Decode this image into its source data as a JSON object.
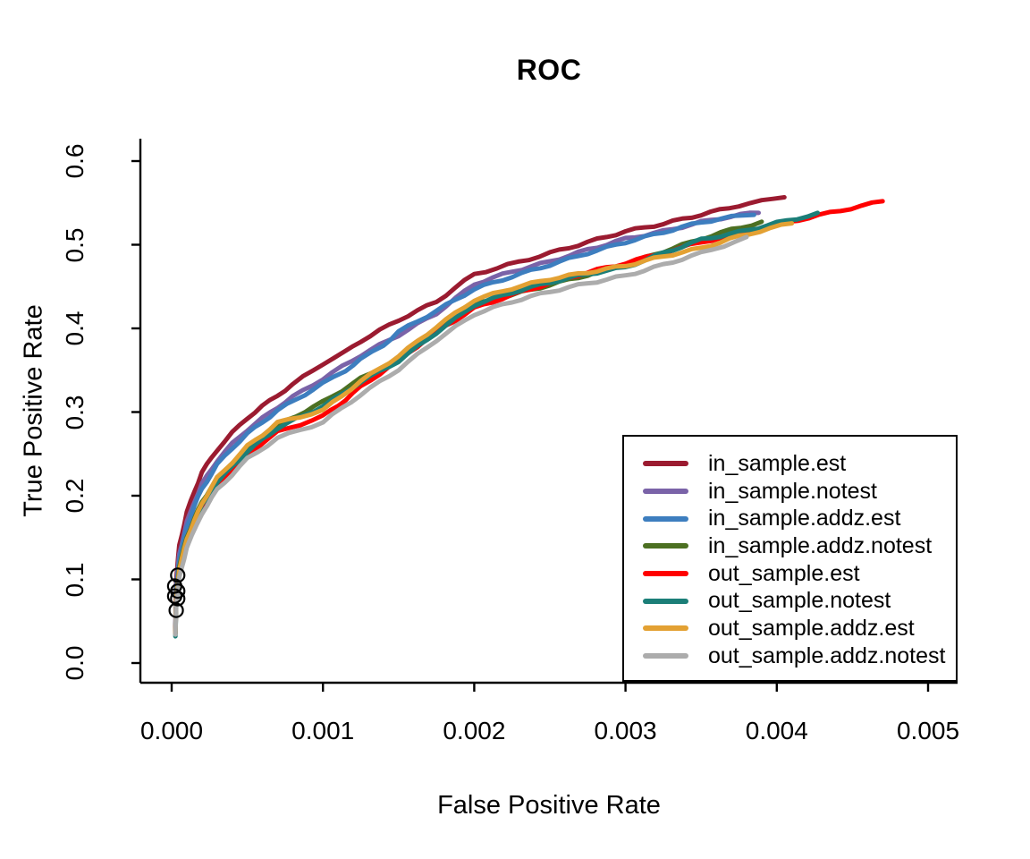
{
  "chart_data": {
    "type": "line",
    "title": "ROC",
    "xlabel": "False Positive Rate",
    "ylabel": "True Positive Rate",
    "x_ticks": [
      0.0,
      0.001,
      0.002,
      0.003,
      0.004,
      0.005
    ],
    "x_tick_labels": [
      "0.000",
      "0.001",
      "0.002",
      "0.003",
      "0.004",
      "0.005"
    ],
    "y_ticks": [
      0.0,
      0.1,
      0.2,
      0.3,
      0.4,
      0.5,
      0.6
    ],
    "y_tick_labels": [
      "0.0",
      "0.1",
      "0.2",
      "0.3",
      "0.4",
      "0.5",
      "0.6"
    ],
    "xlim": [
      -0.0002,
      0.0052
    ],
    "ylim": [
      -0.024,
      0.627
    ],
    "grid": false,
    "axis_color": "#000000",
    "legend": {
      "position": "bottomright",
      "border_color": "#000000",
      "background": "#ffffff"
    },
    "series": [
      {
        "name": "in_sample.est",
        "color": "#9B1B30",
        "line_width": 5,
        "points": [
          [
            2.5e-05,
            0.042
          ],
          [
            3e-05,
            0.1
          ],
          [
            5e-05,
            0.14
          ],
          [
            0.0001,
            0.18
          ],
          [
            0.00015,
            0.205
          ],
          [
            0.0002,
            0.228
          ],
          [
            0.0003,
            0.255
          ],
          [
            0.0004,
            0.275
          ],
          [
            0.0005,
            0.293
          ],
          [
            0.0006,
            0.307
          ],
          [
            0.0007,
            0.32
          ],
          [
            0.0008,
            0.333
          ],
          [
            0.001,
            0.358
          ],
          [
            0.00115,
            0.372
          ],
          [
            0.00125,
            0.385
          ],
          [
            0.0015,
            0.41
          ],
          [
            0.00175,
            0.432
          ],
          [
            0.002,
            0.465
          ],
          [
            0.00215,
            0.472
          ],
          [
            0.0025,
            0.49
          ],
          [
            0.00275,
            0.503
          ],
          [
            0.003,
            0.516
          ],
          [
            0.00325,
            0.525
          ],
          [
            0.0035,
            0.536
          ],
          [
            0.00375,
            0.547
          ],
          [
            0.0039,
            0.552
          ],
          [
            0.00405,
            0.558
          ]
        ]
      },
      {
        "name": "in_sample.notest",
        "color": "#7A63A8",
        "line_width": 5,
        "points": [
          [
            2.5e-05,
            0.04
          ],
          [
            3e-05,
            0.092
          ],
          [
            5e-05,
            0.13
          ],
          [
            0.0001,
            0.168
          ],
          [
            0.00015,
            0.193
          ],
          [
            0.0002,
            0.214
          ],
          [
            0.0003,
            0.242
          ],
          [
            0.0004,
            0.262
          ],
          [
            0.0005,
            0.279
          ],
          [
            0.0007,
            0.306
          ],
          [
            0.0008,
            0.318
          ],
          [
            0.001,
            0.34
          ],
          [
            0.00125,
            0.368
          ],
          [
            0.0015,
            0.392
          ],
          [
            0.00175,
            0.418
          ],
          [
            0.002,
            0.453
          ],
          [
            0.00225,
            0.468
          ],
          [
            0.0025,
            0.48
          ],
          [
            0.00275,
            0.494
          ],
          [
            0.003,
            0.507
          ],
          [
            0.00325,
            0.516
          ],
          [
            0.0035,
            0.527
          ],
          [
            0.0037,
            0.534
          ],
          [
            0.00388,
            0.539
          ]
        ]
      },
      {
        "name": "in_sample.addz.est",
        "color": "#3D7EBF",
        "line_width": 5,
        "points": [
          [
            2.5e-05,
            0.039
          ],
          [
            3e-05,
            0.086
          ],
          [
            5e-05,
            0.124
          ],
          [
            0.0001,
            0.163
          ],
          [
            0.00015,
            0.188
          ],
          [
            0.0002,
            0.208
          ],
          [
            0.0003,
            0.237
          ],
          [
            0.0004,
            0.257
          ],
          [
            0.0005,
            0.274
          ],
          [
            0.0007,
            0.302
          ],
          [
            0.001,
            0.334
          ],
          [
            0.00115,
            0.35
          ],
          [
            0.00125,
            0.363
          ],
          [
            0.0014,
            0.38
          ],
          [
            0.0015,
            0.396
          ],
          [
            0.00175,
            0.421
          ],
          [
            0.002,
            0.447
          ],
          [
            0.00225,
            0.462
          ],
          [
            0.0025,
            0.476
          ],
          [
            0.00275,
            0.49
          ],
          [
            0.003,
            0.503
          ],
          [
            0.00325,
            0.515
          ],
          [
            0.0035,
            0.527
          ],
          [
            0.0037,
            0.533
          ],
          [
            0.00385,
            0.537
          ]
        ]
      },
      {
        "name": "in_sample.addz.notest",
        "color": "#4C7022",
        "line_width": 5,
        "points": [
          [
            2.5e-05,
            0.037
          ],
          [
            3e-05,
            0.079
          ],
          [
            5e-05,
            0.115
          ],
          [
            0.0001,
            0.151
          ],
          [
            0.0002,
            0.193
          ],
          [
            0.0003,
            0.22
          ],
          [
            0.0004,
            0.24
          ],
          [
            0.0005,
            0.257
          ],
          [
            0.0007,
            0.284
          ],
          [
            0.001,
            0.312
          ],
          [
            0.00125,
            0.34
          ],
          [
            0.0015,
            0.363
          ],
          [
            0.00175,
            0.397
          ],
          [
            0.002,
            0.428
          ],
          [
            0.00225,
            0.44
          ],
          [
            0.0025,
            0.452
          ],
          [
            0.00275,
            0.464
          ],
          [
            0.003,
            0.476
          ],
          [
            0.00325,
            0.492
          ],
          [
            0.0035,
            0.507
          ],
          [
            0.0037,
            0.518
          ],
          [
            0.0039,
            0.527
          ]
        ]
      },
      {
        "name": "out_sample.est",
        "color": "#FF0000",
        "line_width": 5,
        "points": [
          [
            2.5e-05,
            0.035
          ],
          [
            3e-05,
            0.073
          ],
          [
            5e-05,
            0.108
          ],
          [
            0.0001,
            0.143
          ],
          [
            0.0002,
            0.185
          ],
          [
            0.0003,
            0.212
          ],
          [
            0.0004,
            0.232
          ],
          [
            0.0005,
            0.25
          ],
          [
            0.0007,
            0.276
          ],
          [
            0.001,
            0.295
          ],
          [
            0.00115,
            0.315
          ],
          [
            0.00125,
            0.33
          ],
          [
            0.0015,
            0.362
          ],
          [
            0.00175,
            0.396
          ],
          [
            0.002,
            0.424
          ],
          [
            0.00225,
            0.44
          ],
          [
            0.0025,
            0.454
          ],
          [
            0.00275,
            0.467
          ],
          [
            0.003,
            0.478
          ],
          [
            0.0035,
            0.503
          ],
          [
            0.004,
            0.524
          ],
          [
            0.0047,
            0.552
          ]
        ]
      },
      {
        "name": "out_sample.notest",
        "color": "#1B7E78",
        "line_width": 5,
        "points": [
          [
            2.5e-05,
            0.032
          ],
          [
            3e-05,
            0.068
          ],
          [
            5e-05,
            0.105
          ],
          [
            0.0001,
            0.146
          ],
          [
            0.0002,
            0.188
          ],
          [
            0.0003,
            0.216
          ],
          [
            0.0005,
            0.253
          ],
          [
            0.0007,
            0.281
          ],
          [
            0.001,
            0.307
          ],
          [
            0.00125,
            0.336
          ],
          [
            0.0015,
            0.361
          ],
          [
            0.00175,
            0.395
          ],
          [
            0.002,
            0.428
          ],
          [
            0.00225,
            0.443
          ],
          [
            0.0025,
            0.455
          ],
          [
            0.00275,
            0.465
          ],
          [
            0.003,
            0.473
          ],
          [
            0.00325,
            0.49
          ],
          [
            0.0035,
            0.506
          ],
          [
            0.00375,
            0.515
          ],
          [
            0.004,
            0.526
          ],
          [
            0.00427,
            0.537
          ]
        ]
      },
      {
        "name": "out_sample.addz.est",
        "color": "#E3A133",
        "line_width": 5,
        "points": [
          [
            2.5e-05,
            0.036
          ],
          [
            3e-05,
            0.076
          ],
          [
            5e-05,
            0.111
          ],
          [
            0.0001,
            0.149
          ],
          [
            0.0002,
            0.191
          ],
          [
            0.0003,
            0.221
          ],
          [
            0.0005,
            0.259
          ],
          [
            0.0007,
            0.287
          ],
          [
            0.001,
            0.302
          ],
          [
            0.00125,
            0.337
          ],
          [
            0.0015,
            0.367
          ],
          [
            0.00175,
            0.402
          ],
          [
            0.002,
            0.434
          ],
          [
            0.00225,
            0.448
          ],
          [
            0.0025,
            0.459
          ],
          [
            0.00275,
            0.467
          ],
          [
            0.003,
            0.475
          ],
          [
            0.00325,
            0.486
          ],
          [
            0.0035,
            0.496
          ],
          [
            0.00375,
            0.51
          ],
          [
            0.0041,
            0.526
          ]
        ]
      },
      {
        "name": "out_sample.addz.notest",
        "color": "#ACACAC",
        "line_width": 5,
        "points": [
          [
            2.5e-05,
            0.034
          ],
          [
            3e-05,
            0.07
          ],
          [
            5e-05,
            0.102
          ],
          [
            0.0001,
            0.138
          ],
          [
            0.0002,
            0.179
          ],
          [
            0.0003,
            0.207
          ],
          [
            0.0005,
            0.244
          ],
          [
            0.0007,
            0.269
          ],
          [
            0.001,
            0.288
          ],
          [
            0.00125,
            0.321
          ],
          [
            0.0015,
            0.351
          ],
          [
            0.00175,
            0.386
          ],
          [
            0.002,
            0.417
          ],
          [
            0.00225,
            0.432
          ],
          [
            0.0025,
            0.444
          ],
          [
            0.00275,
            0.454
          ],
          [
            0.003,
            0.463
          ],
          [
            0.00325,
            0.476
          ],
          [
            0.0035,
            0.49
          ],
          [
            0.0038,
            0.508
          ]
        ]
      }
    ],
    "markers": {
      "shape": "open-circle",
      "color": "#000000",
      "points": [
        [
          4e-05,
          0.105
        ],
        [
          2e-05,
          0.092
        ],
        [
          4e-05,
          0.086
        ],
        [
          2e-05,
          0.08
        ],
        [
          4e-05,
          0.077
        ],
        [
          3e-05,
          0.063
        ]
      ]
    }
  }
}
